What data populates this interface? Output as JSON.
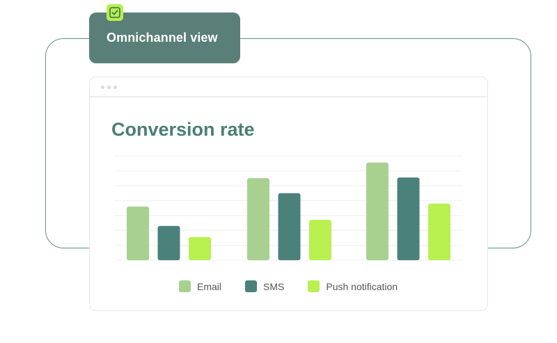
{
  "tag": {
    "label": "Omnichannel view",
    "icon": "checkbox-checked-icon"
  },
  "colors": {
    "frame": "#5f8d82",
    "tag": "#5a7f78",
    "accent": "#b5ef4e",
    "title": "#4a7f73"
  },
  "chart_data": {
    "type": "bar",
    "title": "Conversion rate",
    "categories": [
      "",
      "",
      ""
    ],
    "series": [
      {
        "name": "Email",
        "color": "#a8d190",
        "values": [
          3.6,
          5.5,
          6.55
        ]
      },
      {
        "name": "SMS",
        "color": "#4a817b",
        "values": [
          2.3,
          4.5,
          5.55
        ]
      },
      {
        "name": "Push notification",
        "color": "#b8f050",
        "values": [
          1.55,
          2.7,
          3.8
        ]
      }
    ],
    "ylim": [
      0,
      7
    ],
    "grid": true,
    "axis_labels_shown": false,
    "legend": "bottom"
  }
}
